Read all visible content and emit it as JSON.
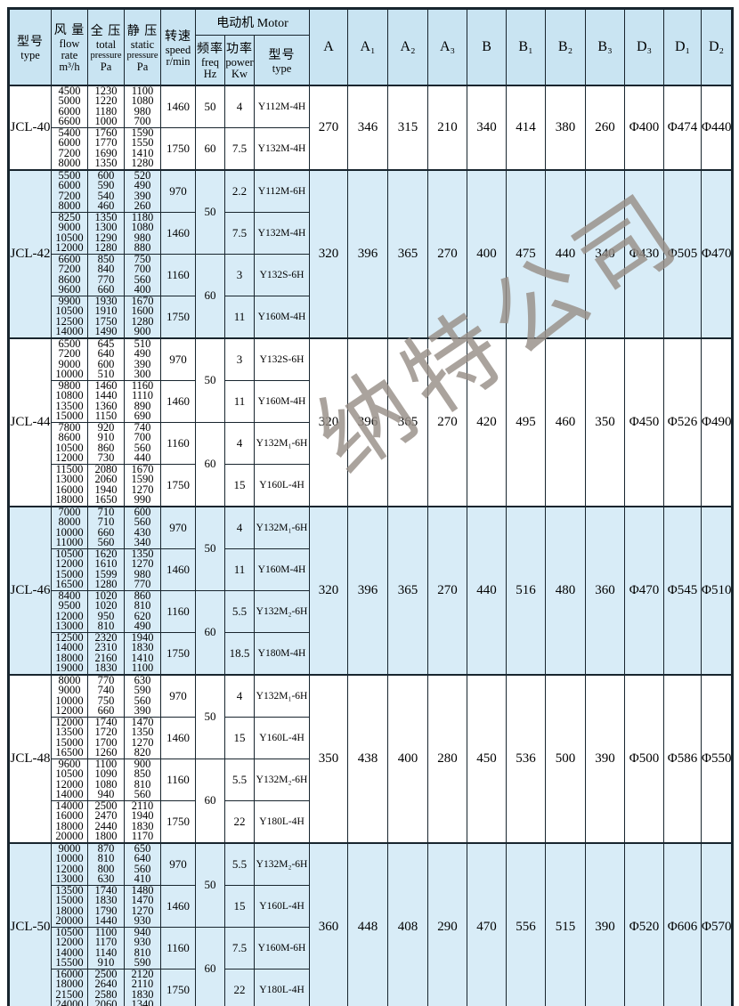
{
  "watermark": {
    "text": "纳特公司"
  },
  "colors": {
    "header_bg": "#c9e4f2",
    "alt_row_bg": "#d8ecf7",
    "border": "#18252e"
  },
  "header": {
    "type": {
      "lines": [
        "型号",
        "type"
      ]
    },
    "flow": {
      "lines": [
        "风 量",
        "flow",
        "rate",
        "m³/h"
      ]
    },
    "total": {
      "lines": [
        "全 压",
        "total",
        "pressure",
        "Pa"
      ]
    },
    "static": {
      "lines": [
        "静 压",
        "static",
        "pressure",
        "Pa"
      ]
    },
    "speed": {
      "lines": [
        "转速",
        "speed",
        "r/min"
      ]
    },
    "motor_group_label": "电动机 Motor",
    "freq": {
      "lines": [
        "频率",
        "freq",
        "Hz"
      ]
    },
    "power": {
      "lines": [
        "功率",
        "power",
        "Kw"
      ]
    },
    "motor_type": {
      "lines": [
        "型号",
        "type"
      ]
    },
    "dims": [
      "A",
      "A₁",
      "A₂",
      "A₃",
      "B",
      "B₁",
      "B₂",
      "B₃",
      "D₃",
      "D₁",
      "D₂"
    ]
  },
  "groups": [
    {
      "type": "JCL-40",
      "shaded": false,
      "dims": [
        "270",
        "346",
        "315",
        "210",
        "340",
        "414",
        "380",
        "260",
        "Φ400",
        "Φ474",
        "Φ440"
      ],
      "halves": [
        {
          "freq": "50",
          "subs": [
            {
              "flow": [
                "4500",
                "5000",
                "6000",
                "6600"
              ],
              "total": [
                "1230",
                "1220",
                "1180",
                "1000"
              ],
              "static": [
                "1100",
                "1080",
                "980",
                "700"
              ],
              "speed": "1460",
              "power": "4",
              "motor": "Y112M-4H"
            }
          ]
        },
        {
          "freq": "60",
          "subs": [
            {
              "flow": [
                "5400",
                "6000",
                "7200",
                "8000"
              ],
              "total": [
                "1760",
                "1770",
                "1690",
                "1350"
              ],
              "static": [
                "1590",
                "1550",
                "1410",
                "1280"
              ],
              "speed": "1750",
              "power": "7.5",
              "motor": "Y132M-4H"
            }
          ]
        }
      ]
    },
    {
      "type": "JCL-42",
      "shaded": true,
      "dims": [
        "320",
        "396",
        "365",
        "270",
        "400",
        "475",
        "440",
        "340",
        "Φ430",
        "Φ505",
        "Φ470"
      ],
      "halves": [
        {
          "freq": "50",
          "subs": [
            {
              "flow": [
                "5500",
                "6000",
                "7200",
                "8000"
              ],
              "total": [
                "600",
                "590",
                "540",
                "460"
              ],
              "static": [
                "520",
                "490",
                "390",
                "260"
              ],
              "speed": "970",
              "power": "2.2",
              "motor": "Y112M-6H"
            },
            {
              "flow": [
                "8250",
                "9000",
                "10500",
                "12000"
              ],
              "total": [
                "1350",
                "1300",
                "1290",
                "1280"
              ],
              "static": [
                "1180",
                "1080",
                "980",
                "880"
              ],
              "speed": "1460",
              "power": "7.5",
              "motor": "Y132M-4H"
            }
          ]
        },
        {
          "freq": "60",
          "subs": [
            {
              "flow": [
                "6600",
                "7200",
                "8600",
                "9600"
              ],
              "total": [
                "850",
                "840",
                "770",
                "660"
              ],
              "static": [
                "750",
                "700",
                "560",
                "400"
              ],
              "speed": "1160",
              "power": "3",
              "motor": "Y132S-6H"
            },
            {
              "flow": [
                "9900",
                "10500",
                "12500",
                "14000"
              ],
              "total": [
                "1930",
                "1910",
                "1750",
                "1490"
              ],
              "static": [
                "1670",
                "1600",
                "1280",
                "900"
              ],
              "speed": "1750",
              "power": "11",
              "motor": "Y160M-4H"
            }
          ]
        }
      ]
    },
    {
      "type": "JCL-44",
      "shaded": false,
      "dims": [
        "320",
        "396",
        "365",
        "270",
        "420",
        "495",
        "460",
        "350",
        "Φ450",
        "Φ526",
        "Φ490"
      ],
      "halves": [
        {
          "freq": "50",
          "subs": [
            {
              "flow": [
                "6500",
                "7200",
                "9000",
                "10000"
              ],
              "total": [
                "645",
                "640",
                "600",
                "510"
              ],
              "static": [
                "510",
                "490",
                "390",
                "300"
              ],
              "speed": "970",
              "power": "3",
              "motor": "Y132S-6H"
            },
            {
              "flow": [
                "9800",
                "10800",
                "13500",
                "15000"
              ],
              "total": [
                "1460",
                "1440",
                "1360",
                "1150"
              ],
              "static": [
                "1160",
                "1110",
                "890",
                "690"
              ],
              "speed": "1460",
              "power": "11",
              "motor": "Y160M-4H"
            }
          ]
        },
        {
          "freq": "60",
          "subs": [
            {
              "flow": [
                "7800",
                "8600",
                "10500",
                "12000"
              ],
              "total": [
                "920",
                "910",
                "860",
                "730"
              ],
              "static": [
                "740",
                "700",
                "560",
                "440"
              ],
              "speed": "1160",
              "power": "4",
              "motor": "Y132M₁-6H"
            },
            {
              "flow": [
                "11500",
                "13000",
                "16000",
                "18000"
              ],
              "total": [
                "2080",
                "2060",
                "1940",
                "1650"
              ],
              "static": [
                "1670",
                "1590",
                "1270",
                "990"
              ],
              "speed": "1750",
              "power": "15",
              "motor": "Y160L-4H"
            }
          ]
        }
      ]
    },
    {
      "type": "JCL-46",
      "shaded": true,
      "dims": [
        "320",
        "396",
        "365",
        "270",
        "440",
        "516",
        "480",
        "360",
        "Φ470",
        "Φ545",
        "Φ510"
      ],
      "halves": [
        {
          "freq": "50",
          "subs": [
            {
              "flow": [
                "7000",
                "8000",
                "10000",
                "11000"
              ],
              "total": [
                "710",
                "710",
                "660",
                "560"
              ],
              "static": [
                "600",
                "560",
                "430",
                "340"
              ],
              "speed": "970",
              "power": "4",
              "motor": "Y132M₁-6H"
            },
            {
              "flow": [
                "10500",
                "12000",
                "15000",
                "16500"
              ],
              "total": [
                "1620",
                "1610",
                "1599",
                "1280"
              ],
              "static": [
                "1350",
                "1270",
                "980",
                "770"
              ],
              "speed": "1460",
              "power": "11",
              "motor": "Y160M-4H"
            }
          ]
        },
        {
          "freq": "60",
          "subs": [
            {
              "flow": [
                "8400",
                "9500",
                "12000",
                "13000"
              ],
              "total": [
                "1020",
                "1020",
                "950",
                "810"
              ],
              "static": [
                "860",
                "810",
                "620",
                "490"
              ],
              "speed": "1160",
              "power": "5.5",
              "motor": "Y132M₂-6H"
            },
            {
              "flow": [
                "12500",
                "14000",
                "18000",
                "19000"
              ],
              "total": [
                "2320",
                "2310",
                "2160",
                "1830"
              ],
              "static": [
                "1940",
                "1830",
                "1410",
                "1100"
              ],
              "speed": "1750",
              "power": "18.5",
              "motor": "Y180M-4H"
            }
          ]
        }
      ]
    },
    {
      "type": "JCL-48",
      "shaded": false,
      "dims": [
        "350",
        "438",
        "400",
        "280",
        "450",
        "536",
        "500",
        "390",
        "Φ500",
        "Φ586",
        "Φ550"
      ],
      "halves": [
        {
          "freq": "50",
          "subs": [
            {
              "flow": [
                "8000",
                "9000",
                "10000",
                "12000"
              ],
              "total": [
                "770",
                "740",
                "750",
                "660"
              ],
              "static": [
                "630",
                "590",
                "560",
                "390"
              ],
              "speed": "970",
              "power": "4",
              "motor": "Y132M₁-6H"
            },
            {
              "flow": [
                "12000",
                "13500",
                "15000",
                "16500"
              ],
              "total": [
                "1740",
                "1720",
                "1700",
                "1260"
              ],
              "static": [
                "1470",
                "1350",
                "1270",
                "820"
              ],
              "speed": "1460",
              "power": "15",
              "motor": "Y160L-4H"
            }
          ]
        },
        {
          "freq": "60",
          "subs": [
            {
              "flow": [
                "9600",
                "10500",
                "12000",
                "14000"
              ],
              "total": [
                "1100",
                "1090",
                "1080",
                "940"
              ],
              "static": [
                "900",
                "850",
                "810",
                "560"
              ],
              "speed": "1160",
              "power": "5.5",
              "motor": "Y132M₂-6H"
            },
            {
              "flow": [
                "14000",
                "16000",
                "18000",
                "20000"
              ],
              "total": [
                "2500",
                "2470",
                "2440",
                "1800"
              ],
              "static": [
                "2110",
                "1940",
                "1830",
                "1170"
              ],
              "speed": "1750",
              "power": "22",
              "motor": "Y180L-4H"
            }
          ]
        }
      ]
    },
    {
      "type": "JCL-50",
      "shaded": true,
      "dims": [
        "360",
        "448",
        "408",
        "290",
        "470",
        "556",
        "515",
        "390",
        "Φ520",
        "Φ606",
        "Φ570"
      ],
      "halves": [
        {
          "freq": "50",
          "subs": [
            {
              "flow": [
                "9000",
                "10000",
                "12000",
                "13000"
              ],
              "total": [
                "870",
                "810",
                "800",
                "630"
              ],
              "static": [
                "650",
                "640",
                "560",
                "410"
              ],
              "speed": "970",
              "power": "5.5",
              "motor": "Y132M₂-6H"
            },
            {
              "flow": [
                "13500",
                "15000",
                "18000",
                "20000"
              ],
              "total": [
                "1740",
                "1830",
                "1790",
                "1440"
              ],
              "static": [
                "1480",
                "1470",
                "1270",
                "930"
              ],
              "speed": "1460",
              "power": "15",
              "motor": "Y160L-4H"
            }
          ]
        },
        {
          "freq": "60",
          "subs": [
            {
              "flow": [
                "10500",
                "12000",
                "14000",
                "15500"
              ],
              "total": [
                "1100",
                "1170",
                "1140",
                "910"
              ],
              "static": [
                "940",
                "930",
                "810",
                "590"
              ],
              "speed": "1160",
              "power": "7.5",
              "motor": "Y160M-6H"
            },
            {
              "flow": [
                "16000",
                "18000",
                "21500",
                "24000"
              ],
              "total": [
                "2500",
                "2640",
                "2580",
                "2060"
              ],
              "static": [
                "2120",
                "2110",
                "1830",
                "1340"
              ],
              "speed": "1750",
              "power": "22",
              "motor": "Y180L-4H"
            }
          ]
        }
      ]
    }
  ]
}
